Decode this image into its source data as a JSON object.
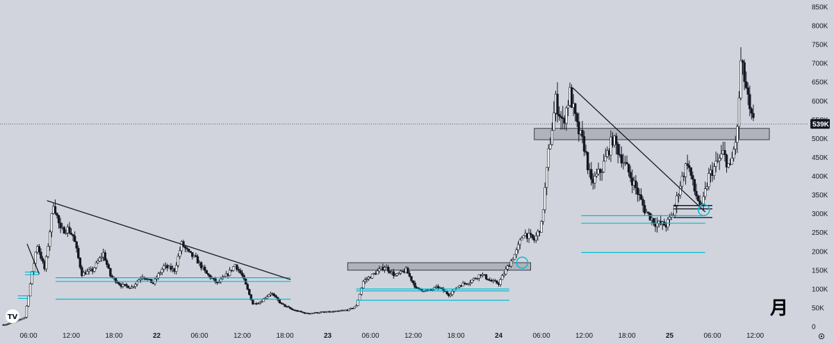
{
  "chart_data": {
    "type": "candlestick",
    "y_ticks": [
      "0",
      "50K",
      "100K",
      "150K",
      "200K",
      "250K",
      "300K",
      "350K",
      "400K",
      "450K",
      "500K",
      "550K",
      "600K",
      "650K",
      "700K",
      "750K",
      "800K",
      "850K"
    ],
    "y_tick_values": [
      0,
      50000,
      100000,
      150000,
      200000,
      250000,
      300000,
      350000,
      400000,
      450000,
      500000,
      550000,
      600000,
      650000,
      700000,
      750000,
      800000,
      850000
    ],
    "ylim": [
      0,
      850000
    ],
    "x_ticks": [
      {
        "label": "06:00",
        "bold": false,
        "t": 6
      },
      {
        "label": "12:00",
        "bold": false,
        "t": 12
      },
      {
        "label": "18:00",
        "bold": false,
        "t": 18
      },
      {
        "label": "22",
        "bold": true,
        "t": 24
      },
      {
        "label": "06:00",
        "bold": false,
        "t": 30
      },
      {
        "label": "12:00",
        "bold": false,
        "t": 36
      },
      {
        "label": "18:00",
        "bold": false,
        "t": 42
      },
      {
        "label": "23",
        "bold": true,
        "t": 48
      },
      {
        "label": "06:00",
        "bold": false,
        "t": 54
      },
      {
        "label": "12:00",
        "bold": false,
        "t": 60
      },
      {
        "label": "18:00",
        "bold": false,
        "t": 66
      },
      {
        "label": "24",
        "bold": true,
        "t": 72
      },
      {
        "label": "06:00",
        "bold": false,
        "t": 78
      },
      {
        "label": "12:00",
        "bold": false,
        "t": 84
      },
      {
        "label": "18:00",
        "bold": false,
        "t": 90
      },
      {
        "label": "25",
        "bold": true,
        "t": 96
      },
      {
        "label": "06:00",
        "bold": false,
        "t": 102
      },
      {
        "label": "12:00",
        "bold": false,
        "t": 108
      }
    ],
    "xlim": [
      2,
      114
    ],
    "current_price_label": "539K",
    "current_price": 539000,
    "watermark": "月",
    "logo_text": "TV",
    "anchors": [
      [
        2.5,
        5000
      ],
      [
        4,
        12000
      ],
      [
        5.5,
        25000
      ],
      [
        6.3,
        120000
      ],
      [
        7.2,
        220000
      ],
      [
        8.3,
        150000
      ],
      [
        9.5,
        330000
      ],
      [
        10.5,
        255000
      ],
      [
        11.5,
        260000
      ],
      [
        12.3,
        240000
      ],
      [
        13.5,
        140000
      ],
      [
        15,
        150000
      ],
      [
        16.5,
        195000
      ],
      [
        17.5,
        135000
      ],
      [
        19,
        110000
      ],
      [
        20.5,
        105000
      ],
      [
        22,
        135000
      ],
      [
        23.5,
        115000
      ],
      [
        25,
        160000
      ],
      [
        26.5,
        150000
      ],
      [
        27.5,
        220000
      ],
      [
        28.5,
        195000
      ],
      [
        29.5,
        180000
      ],
      [
        31,
        140000
      ],
      [
        32.5,
        115000
      ],
      [
        34,
        140000
      ],
      [
        35,
        165000
      ],
      [
        36,
        135000
      ],
      [
        37.5,
        60000
      ],
      [
        38.5,
        65000
      ],
      [
        40,
        90000
      ],
      [
        41.5,
        60000
      ],
      [
        43,
        45000
      ],
      [
        45,
        35000
      ],
      [
        47,
        38000
      ],
      [
        49,
        40000
      ],
      [
        51,
        45000
      ],
      [
        52,
        55000
      ],
      [
        53,
        120000
      ],
      [
        54.5,
        140000
      ],
      [
        56,
        160000
      ],
      [
        57.5,
        135000
      ],
      [
        59,
        150000
      ],
      [
        60.5,
        100000
      ],
      [
        62,
        95000
      ],
      [
        63.5,
        105000
      ],
      [
        65,
        85000
      ],
      [
        66.5,
        110000
      ],
      [
        68,
        120000
      ],
      [
        69.5,
        140000
      ],
      [
        71,
        120000
      ],
      [
        72,
        115000
      ],
      [
        73,
        150000
      ],
      [
        74.5,
        200000
      ],
      [
        75.5,
        250000
      ],
      [
        77,
        230000
      ],
      [
        78,
        270000
      ],
      [
        79,
        460000
      ],
      [
        80,
        600000
      ],
      [
        81,
        540000
      ],
      [
        82,
        620000
      ],
      [
        83,
        530000
      ],
      [
        84,
        480000
      ],
      [
        85,
        380000
      ],
      [
        86.5,
        420000
      ],
      [
        88,
        500000
      ],
      [
        89.5,
        440000
      ],
      [
        91,
        380000
      ],
      [
        92.5,
        310000
      ],
      [
        94,
        275000
      ],
      [
        95.5,
        270000
      ],
      [
        96.5,
        300000
      ],
      [
        97.5,
        380000
      ],
      [
        98.5,
        440000
      ],
      [
        99.5,
        360000
      ],
      [
        100.5,
        315000
      ],
      [
        101.5,
        400000
      ],
      [
        102.5,
        430000
      ],
      [
        103.5,
        460000
      ],
      [
        104.5,
        420000
      ],
      [
        105.5,
        520000
      ],
      [
        106,
        700000
      ],
      [
        106.7,
        640000
      ],
      [
        107.3,
        560000
      ],
      [
        107.8,
        539000
      ]
    ],
    "trendlines": [
      {
        "x1": 5.8,
        "y1": 220000,
        "x2": 7.5,
        "y2": 140000
      },
      {
        "x1": 8.6,
        "y1": 335000,
        "x2": 42.8,
        "y2": 125000
      },
      {
        "x1": 82.4,
        "y1": 635000,
        "x2": 101,
        "y2": 305000
      }
    ],
    "support_lines": [
      {
        "x1": 5.5,
        "x2": 7.5,
        "y": 145000
      },
      {
        "x1": 5.5,
        "x2": 7.5,
        "y": 138000
      },
      {
        "x1": 4.5,
        "x2": 6,
        "y": 82000
      },
      {
        "x1": 4.5,
        "x2": 6,
        "y": 75000
      },
      {
        "x1": 9.8,
        "x2": 42.8,
        "y": 130000
      },
      {
        "x1": 9.8,
        "x2": 42.8,
        "y": 120000
      },
      {
        "x1": 9.8,
        "x2": 42.8,
        "y": 73000
      },
      {
        "x1": 52,
        "x2": 73.5,
        "y": 100000
      },
      {
        "x1": 52,
        "x2": 73.5,
        "y": 95000
      },
      {
        "x1": 52,
        "x2": 73.5,
        "y": 70000
      },
      {
        "x1": 83.6,
        "x2": 101,
        "y": 295000
      },
      {
        "x1": 83.6,
        "x2": 101,
        "y": 275000
      },
      {
        "x1": 83.6,
        "x2": 101,
        "y": 197000
      }
    ],
    "black_levels": [
      {
        "x1": 96.5,
        "x2": 102,
        "y": 322000
      },
      {
        "x1": 96.5,
        "x2": 102,
        "y": 313000
      },
      {
        "x1": 96.5,
        "x2": 102,
        "y": 290000
      }
    ],
    "zones": [
      {
        "x1": 50.8,
        "x2": 76.5,
        "top": 170000,
        "bottom": 150000
      },
      {
        "x1": 77,
        "x2": 110,
        "top": 527000,
        "bottom": 497000
      }
    ],
    "circles": [
      {
        "x": 75.3,
        "y": 170000
      },
      {
        "x": 100.8,
        "y": 310000
      }
    ]
  }
}
